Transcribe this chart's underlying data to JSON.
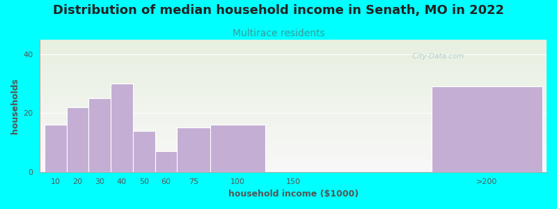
{
  "title": "Distribution of median household income in Senath, MO in 2022",
  "subtitle": "Multirace residents",
  "xlabel": "household income ($1000)",
  "ylabel": "households",
  "background_color": "#00FFFF",
  "plot_bg_top": "#e8f0e0",
  "plot_bg_bottom": "#f8f8f8",
  "bar_color": "#c4aed4",
  "bar_edge_color": "#ffffff",
  "categories": [
    "10",
    "20",
    "30",
    "40",
    "50",
    "60",
    "75",
    "100",
    "150",
    ">200"
  ],
  "values": [
    16,
    22,
    25,
    30,
    14,
    7,
    15,
    16,
    0,
    29
  ],
  "x_left": [
    0,
    10,
    20,
    30,
    40,
    50,
    60,
    75,
    100,
    175
  ],
  "x_right": [
    10,
    20,
    30,
    40,
    50,
    60,
    75,
    100,
    125,
    225
  ],
  "tick_positions": [
    5,
    15,
    25,
    35,
    45,
    55,
    67.5,
    87.5,
    112.5,
    200
  ],
  "tick_labels": [
    "10",
    "20",
    "30",
    "40",
    "50",
    "60",
    "75",
    "100",
    "150",
    ">200"
  ],
  "xlim": [
    -2,
    227
  ],
  "ylim": [
    0,
    45
  ],
  "yticks": [
    0,
    20,
    40
  ],
  "watermark": " City-Data.com",
  "title_fontsize": 13,
  "subtitle_fontsize": 10,
  "subtitle_color": "#3a9999",
  "axis_label_fontsize": 9,
  "tick_fontsize": 8,
  "title_color": "#222222"
}
